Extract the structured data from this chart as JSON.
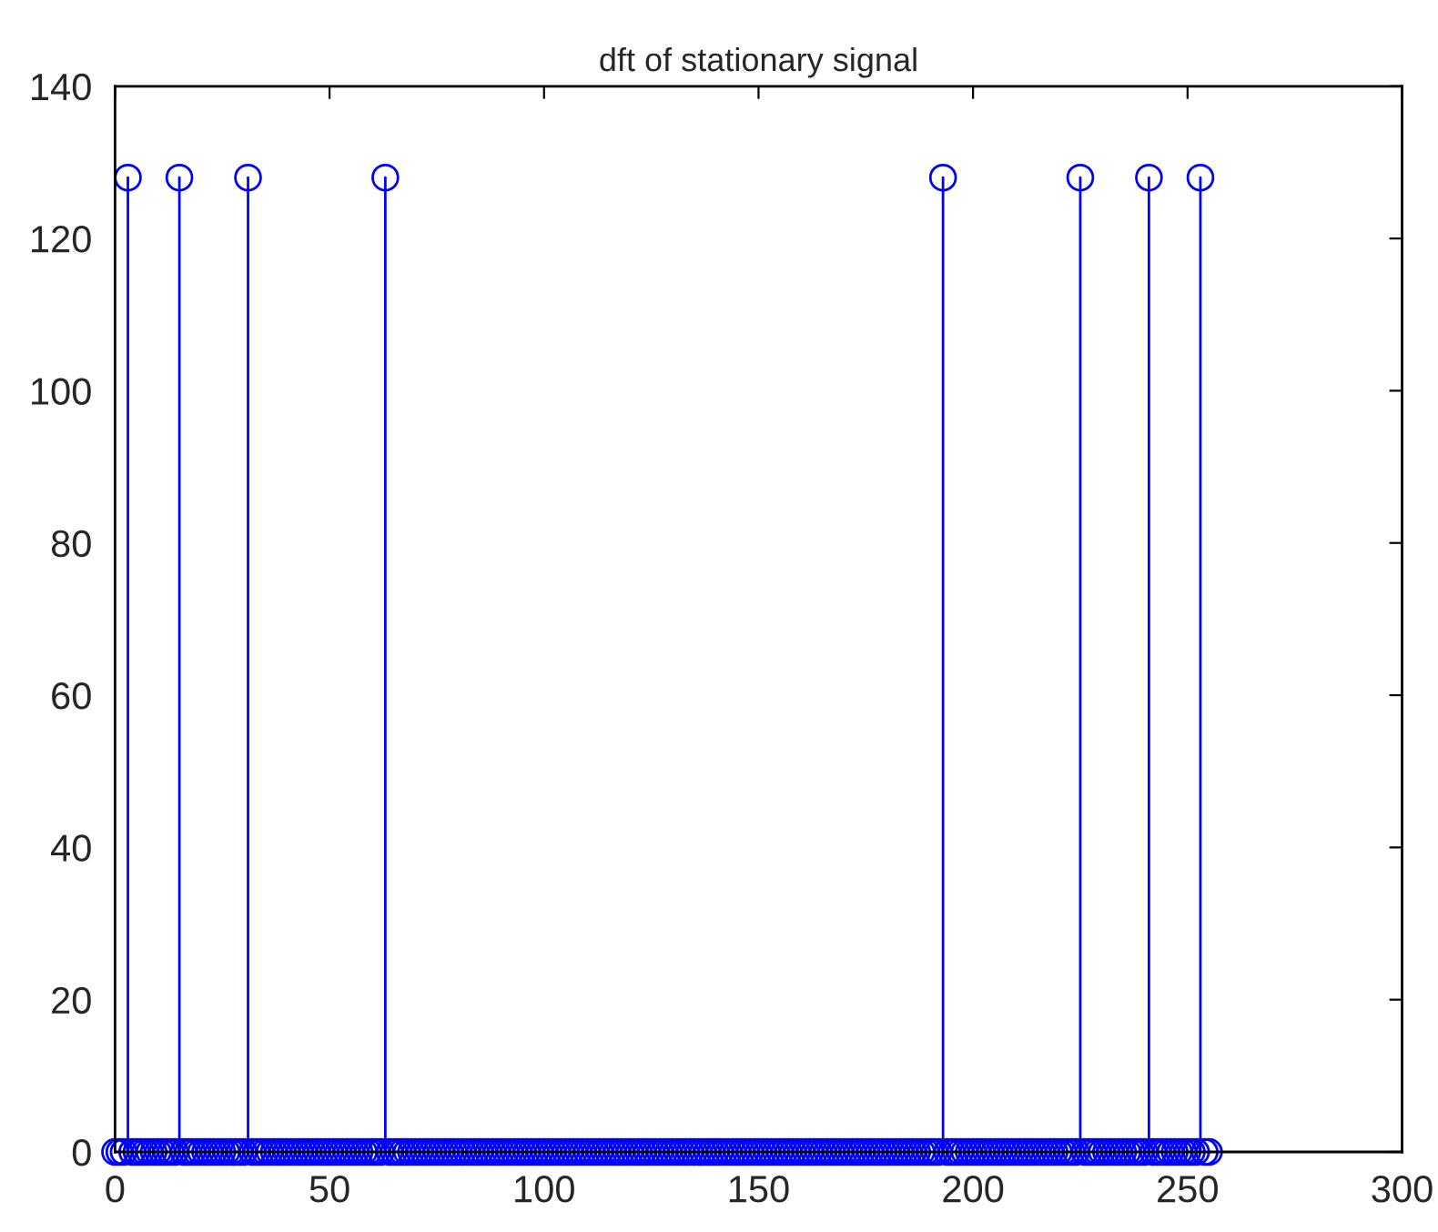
{
  "chart_data": {
    "type": "lollipop",
    "title": "dft of stationary signal",
    "x": [
      0,
      1,
      2,
      3,
      4,
      5,
      6,
      7,
      8,
      9,
      10,
      11,
      12,
      13,
      14,
      15,
      16,
      17,
      18,
      19,
      20,
      21,
      22,
      23,
      24,
      25,
      26,
      27,
      28,
      29,
      30,
      31,
      32,
      33,
      34,
      35,
      36,
      37,
      38,
      39,
      40,
      41,
      42,
      43,
      44,
      45,
      46,
      47,
      48,
      49,
      50,
      51,
      52,
      53,
      54,
      55,
      56,
      57,
      58,
      59,
      60,
      61,
      62,
      63,
      64,
      65,
      66,
      67,
      68,
      69,
      70,
      71,
      72,
      73,
      74,
      75,
      76,
      77,
      78,
      79,
      80,
      81,
      82,
      83,
      84,
      85,
      86,
      87,
      88,
      89,
      90,
      91,
      92,
      93,
      94,
      95,
      96,
      97,
      98,
      99,
      100,
      101,
      102,
      103,
      104,
      105,
      106,
      107,
      108,
      109,
      110,
      111,
      112,
      113,
      114,
      115,
      116,
      117,
      118,
      119,
      120,
      121,
      122,
      123,
      124,
      125,
      126,
      127,
      128,
      129,
      130,
      131,
      132,
      133,
      134,
      135,
      136,
      137,
      138,
      139,
      140,
      141,
      142,
      143,
      144,
      145,
      146,
      147,
      148,
      149,
      150,
      151,
      152,
      153,
      154,
      155,
      156,
      157,
      158,
      159,
      160,
      161,
      162,
      163,
      164,
      165,
      166,
      167,
      168,
      169,
      170,
      171,
      172,
      173,
      174,
      175,
      176,
      177,
      178,
      179,
      180,
      181,
      182,
      183,
      184,
      185,
      186,
      187,
      188,
      189,
      190,
      191,
      192,
      193,
      194,
      195,
      196,
      197,
      198,
      199,
      200,
      201,
      202,
      203,
      204,
      205,
      206,
      207,
      208,
      209,
      210,
      211,
      212,
      213,
      214,
      215,
      216,
      217,
      218,
      219,
      220,
      221,
      222,
      223,
      224,
      225,
      226,
      227,
      228,
      229,
      230,
      231,
      232,
      233,
      234,
      235,
      236,
      237,
      238,
      239,
      240,
      241,
      242,
      243,
      244,
      245,
      246,
      247,
      248,
      249,
      250,
      251,
      252,
      253,
      254,
      255
    ],
    "series": [
      {
        "color": "#0000ff",
        "values": [
          0,
          0,
          0,
          128,
          0,
          0,
          0,
          0,
          0,
          0,
          0,
          0,
          0,
          0,
          0,
          128,
          0,
          0,
          0,
          0,
          0,
          0,
          0,
          0,
          0,
          0,
          0,
          0,
          0,
          0,
          0,
          128,
          0,
          0,
          0,
          0,
          0,
          0,
          0,
          0,
          0,
          0,
          0,
          0,
          0,
          0,
          0,
          0,
          0,
          0,
          0,
          0,
          0,
          0,
          0,
          0,
          0,
          0,
          0,
          0,
          0,
          0,
          0,
          128,
          0,
          0,
          0,
          0,
          0,
          0,
          0,
          0,
          0,
          0,
          0,
          0,
          0,
          0,
          0,
          0,
          0,
          0,
          0,
          0,
          0,
          0,
          0,
          0,
          0,
          0,
          0,
          0,
          0,
          0,
          0,
          0,
          0,
          0,
          0,
          0,
          0,
          0,
          0,
          0,
          0,
          0,
          0,
          0,
          0,
          0,
          0,
          0,
          0,
          0,
          0,
          0,
          0,
          0,
          0,
          0,
          0,
          0,
          0,
          0,
          0,
          0,
          0,
          0,
          0,
          0,
          0,
          0,
          0,
          0,
          0,
          0,
          0,
          0,
          0,
          0,
          0,
          0,
          0,
          0,
          0,
          0,
          0,
          0,
          0,
          0,
          0,
          0,
          0,
          0,
          0,
          0,
          0,
          0,
          0,
          0,
          0,
          0,
          0,
          0,
          0,
          0,
          0,
          0,
          0,
          0,
          0,
          0,
          0,
          0,
          0,
          0,
          0,
          0,
          0,
          0,
          0,
          0,
          0,
          0,
          0,
          0,
          0,
          0,
          0,
          0,
          0,
          0,
          0,
          128,
          0,
          0,
          0,
          0,
          0,
          0,
          0,
          0,
          0,
          0,
          0,
          0,
          0,
          0,
          0,
          0,
          0,
          0,
          0,
          0,
          0,
          0,
          0,
          0,
          0,
          0,
          0,
          0,
          0,
          0,
          0,
          128,
          0,
          0,
          0,
          0,
          0,
          0,
          0,
          0,
          0,
          0,
          0,
          0,
          0,
          0,
          0,
          128,
          0,
          0,
          0,
          0,
          0,
          0,
          0,
          0,
          0,
          0,
          0,
          128,
          0,
          0
        ]
      }
    ],
    "xlim": [
      0,
      300
    ],
    "xticks": [
      0,
      50,
      100,
      150,
      200,
      250,
      300
    ],
    "ylim": [
      0,
      140
    ],
    "yticks": [
      0,
      20,
      40,
      60,
      80,
      100,
      120,
      140
    ],
    "marker": "circle",
    "grid": false
  }
}
